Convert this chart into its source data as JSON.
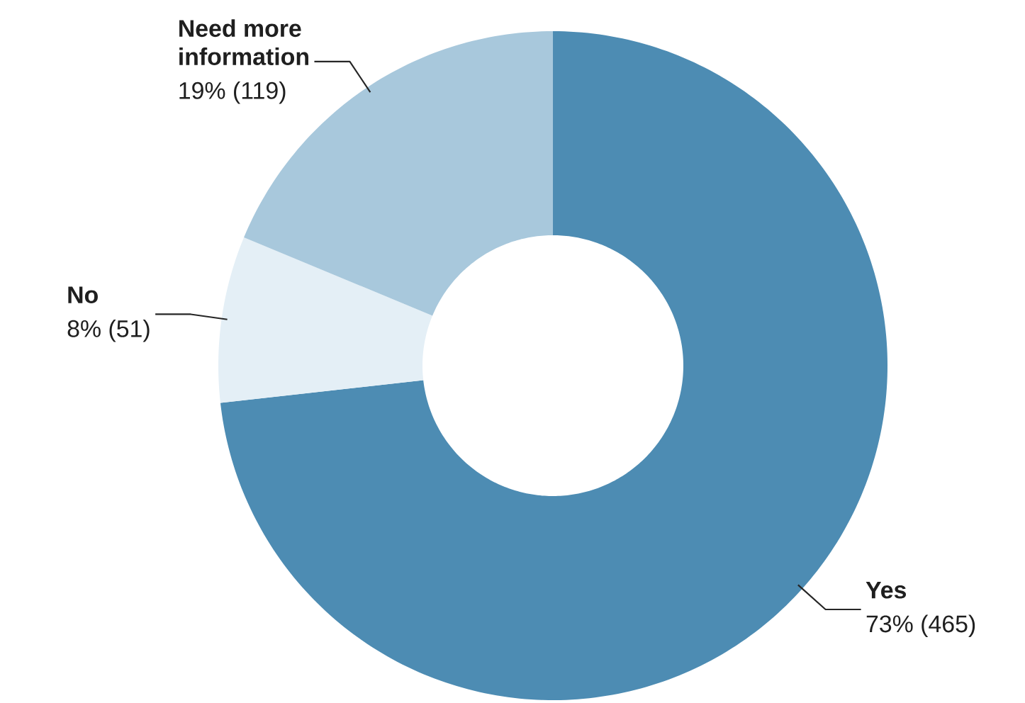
{
  "chart_data": {
    "type": "donut",
    "categories": [
      "Yes",
      "No",
      "Need more information"
    ],
    "values": [
      465,
      51,
      119
    ],
    "value_labels": [
      "73% (465)",
      "8% (51)",
      "19% (119)"
    ],
    "colors": [
      "#4d8cb3",
      "#e4eff6",
      "#a8c8dc"
    ]
  }
}
